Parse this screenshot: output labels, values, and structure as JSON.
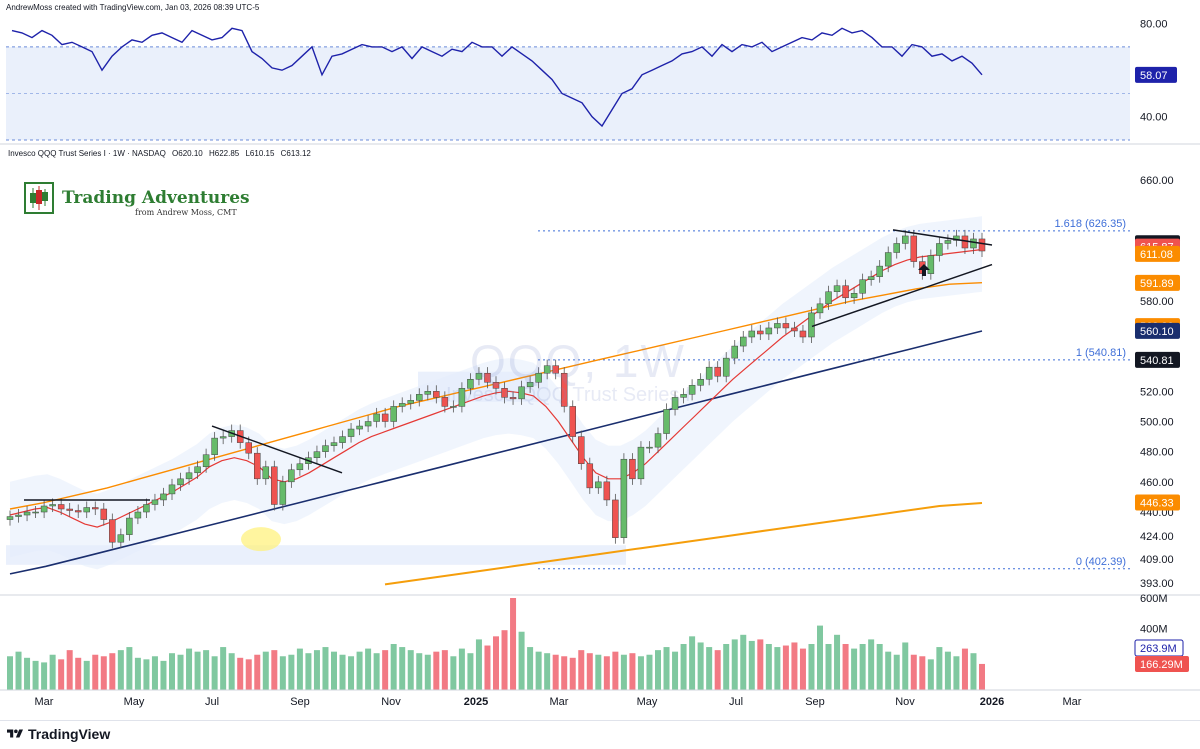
{
  "header": {
    "credit": "AndrewMoss created with TradingView.com, Jan 03, 2026 08:39 UTC-5",
    "symbol_name": "Invesco QQQ Trust Series I · 1W · NASDAQ",
    "open": "O620.10",
    "high": "H622.85",
    "low": "L610.15",
    "close": "C613.12"
  },
  "logo": {
    "title": "Trading Adventures",
    "subtitle": "from Andrew Moss, CMT"
  },
  "watermark": {
    "symbol": "QQQ, 1W",
    "name": "Invesco QQQ Trust Series I"
  },
  "footer": {
    "brand": "TradingView"
  },
  "colors": {
    "up": "#66bb6a",
    "down": "#ef5350",
    "rsi": "#1e22aa",
    "sma50": "#fb8c00",
    "sma200": "#f59e0b",
    "sma_long": "#1a2e6e",
    "ema_fast": "#e53935",
    "fib": "#3f6fd8",
    "volume_up": "#80c8a0",
    "volume_down": "#f27a84",
    "highlight": "#fff176"
  },
  "chart_data": [
    {
      "type": "line",
      "panel": "rsi",
      "ylim": [
        30,
        85
      ],
      "y_ticks": [
        {
          "value": 80,
          "label": "80.00"
        },
        {
          "value": 40,
          "label": "40.00"
        }
      ],
      "band": {
        "upper": 70,
        "lower": 30,
        "mid": 50
      },
      "value_label": "58.07",
      "values": [
        77,
        76,
        74,
        77,
        75,
        71,
        72,
        70,
        68,
        60,
        66,
        70,
        73,
        72,
        75,
        76,
        74,
        72,
        77,
        75,
        73,
        74,
        78,
        77,
        68,
        65,
        61,
        60,
        62,
        66,
        70,
        58,
        66,
        67,
        69,
        71,
        70,
        70,
        68,
        70,
        65,
        70,
        68,
        66,
        69,
        68,
        72,
        70,
        70,
        66,
        70,
        67,
        64,
        60,
        56,
        50,
        48,
        46,
        40,
        36,
        43,
        50,
        52,
        58,
        60,
        62,
        64,
        67,
        68,
        70,
        66,
        71,
        68,
        71,
        70,
        72,
        68,
        70,
        72,
        74,
        73,
        76,
        75,
        78,
        76,
        77,
        74,
        70,
        70,
        66,
        71,
        70,
        66,
        67,
        64,
        66,
        63,
        58
      ]
    },
    {
      "type": "candlestick",
      "panel": "price",
      "title": "QQQ, 1W",
      "ylim": [
        385,
        672
      ],
      "x_ticks": [
        "Mar",
        "May",
        "Jul",
        "Sep",
        "Nov",
        "2025",
        "Mar",
        "May",
        "Jul",
        "Sep",
        "Nov",
        "2026",
        "Mar"
      ],
      "y_ticks": [
        {
          "value": 660,
          "label": "660.00"
        },
        {
          "value": 580,
          "label": "580.00"
        },
        {
          "value": 520,
          "label": "520.00"
        },
        {
          "value": 500,
          "label": "500.00"
        },
        {
          "value": 480,
          "label": "480.00"
        },
        {
          "value": 460,
          "label": "460.00"
        },
        {
          "value": 440,
          "label": "440.00"
        },
        {
          "value": 424,
          "label": "424.00"
        },
        {
          "value": 409,
          "label": "409.00"
        },
        {
          "value": 393,
          "label": "393.00"
        }
      ],
      "price_labels": [
        {
          "value": 618.14,
          "label": "618.14",
          "color": "#131722"
        },
        {
          "value": 615.87,
          "label": "615.87",
          "color": "#ef5350"
        },
        {
          "value": 611.08,
          "label": "611.08",
          "color": "#fb8c00"
        },
        {
          "value": 591.89,
          "label": "591.89",
          "color": "#fb8c00"
        },
        {
          "value": 563.2,
          "label": "563.20",
          "color": "#fb8c00"
        },
        {
          "value": 560.1,
          "label": "560.10",
          "color": "#1a2e6e"
        },
        {
          "value": 540.81,
          "label": "540.81",
          "color": "#131722"
        },
        {
          "value": 446.33,
          "label": "446.33",
          "color": "#fb8c00"
        }
      ],
      "fib_levels": [
        {
          "value": 626.35,
          "label": "1.618 (626.35)"
        },
        {
          "value": 540.81,
          "label": "1 (540.81)"
        },
        {
          "value": 402.39,
          "label": "0 (402.39)"
        }
      ],
      "closes": [
        437,
        438,
        440,
        440,
        444,
        445,
        442,
        441,
        440,
        443,
        442,
        435,
        420,
        425,
        436,
        440,
        445,
        448,
        452,
        458,
        462,
        466,
        470,
        478,
        489,
        490,
        494,
        486,
        479,
        462,
        470,
        445,
        460,
        468,
        472,
        476,
        480,
        484,
        486,
        490,
        495,
        497,
        500,
        505,
        500,
        510,
        512,
        514,
        518,
        520,
        516,
        510,
        510,
        522,
        528,
        532,
        526,
        522,
        516,
        515,
        523,
        526,
        532,
        537,
        532,
        510,
        490,
        472,
        456,
        460,
        448,
        423,
        475,
        462,
        483,
        483,
        492,
        508,
        516,
        518,
        524,
        528,
        536,
        530,
        542,
        550,
        556,
        560,
        558,
        562,
        565,
        562,
        560,
        556,
        572,
        578,
        586,
        590,
        582,
        585,
        594,
        596,
        603,
        612,
        618,
        623,
        606,
        598,
        610,
        618,
        620,
        623,
        615,
        621,
        613
      ],
      "opens_gap_note": "candles drawn with open = previous close",
      "ema_fast": [
        438,
        440,
        442,
        443,
        440,
        436,
        432,
        430,
        433,
        437,
        441,
        445,
        449,
        453,
        458,
        463,
        470,
        474,
        476,
        474,
        470,
        462,
        460,
        462,
        466,
        471,
        476,
        481,
        486,
        490,
        493,
        496,
        499,
        502,
        505,
        508,
        511,
        514,
        517,
        519,
        520,
        519,
        517,
        510,
        500,
        488,
        476,
        466,
        462,
        462,
        466,
        472,
        480,
        488,
        496,
        504,
        512,
        520,
        528,
        535,
        542,
        549,
        556,
        562,
        568,
        574,
        580,
        585,
        590,
        595,
        600,
        604,
        607,
        609,
        610,
        611,
        612,
        613,
        614
      ],
      "sma50": [
        442,
        446,
        451,
        456,
        462,
        468,
        474,
        480,
        486,
        492,
        498,
        504,
        510,
        515,
        520,
        525,
        530,
        535,
        540,
        545,
        550,
        555,
        560,
        565,
        570,
        575,
        580,
        584,
        588,
        591,
        592
      ],
      "sma200": [
        392,
        396,
        400,
        404,
        408,
        412,
        416,
        420,
        424,
        428,
        432,
        436,
        440,
        444,
        446
      ],
      "sma_long": [
        399,
        404,
        410,
        416,
        422,
        428,
        434,
        440,
        446,
        452,
        458,
        464,
        470,
        476,
        482,
        488,
        494,
        500,
        506,
        512,
        518,
        524,
        530,
        536,
        542,
        548,
        554,
        560
      ],
      "annotations": [
        "9",
        "9",
        "9",
        "9",
        "9",
        "9"
      ]
    },
    {
      "type": "bar",
      "panel": "volume",
      "ylim": [
        0,
        600
      ],
      "y_ticks": [
        {
          "value": 600,
          "label": "600M"
        },
        {
          "value": 400,
          "label": "400M"
        }
      ],
      "value_labels": [
        {
          "label": "263.9M",
          "color": "#1e22aa"
        },
        {
          "label": "166.29M",
          "color": "#ef5350"
        }
      ],
      "values": [
        220,
        250,
        210,
        190,
        180,
        230,
        200,
        260,
        210,
        190,
        230,
        220,
        240,
        260,
        280,
        210,
        200,
        220,
        190,
        240,
        230,
        270,
        250,
        260,
        220,
        280,
        240,
        210,
        200,
        230,
        250,
        260,
        220,
        230,
        270,
        240,
        260,
        280,
        250,
        230,
        220,
        250,
        270,
        240,
        260,
        300,
        280,
        260,
        240,
        230,
        250,
        260,
        220,
        270,
        240,
        330,
        290,
        350,
        390,
        600,
        380,
        280,
        250,
        240,
        230,
        220,
        210,
        260,
        240,
        230,
        220,
        250,
        230,
        240,
        220,
        230,
        260,
        280,
        250,
        300,
        350,
        310,
        280,
        260,
        300,
        330,
        360,
        320,
        330,
        300,
        280,
        290,
        310,
        270,
        300,
        420,
        300,
        360,
        300,
        270,
        300,
        330,
        300,
        250,
        230,
        310,
        230,
        220,
        200,
        280,
        250,
        220,
        270,
        240,
        170
      ],
      "directions": "alternating by candle color"
    }
  ]
}
